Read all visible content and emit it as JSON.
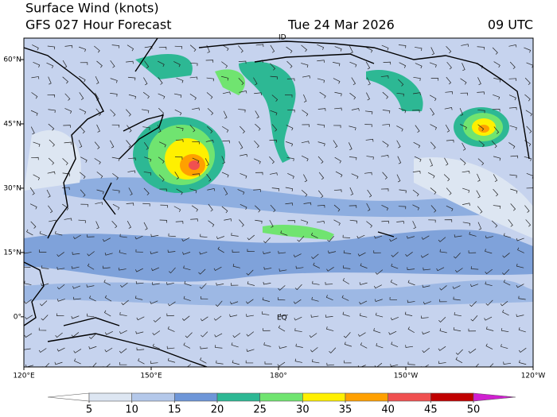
{
  "header": {
    "title": "Surface Wind (knots)",
    "subtitle": "GFS 027 Hour Forecast",
    "date": "Tue 24 Mar 2026",
    "time": "09 UTC"
  },
  "map": {
    "lon_range": [
      120,
      240
    ],
    "lat_range": [
      -11.7,
      65
    ],
    "lon_ticks": [
      {
        "value": 120,
        "label": "120°E"
      },
      {
        "value": 150,
        "label": "150°E"
      },
      {
        "value": 180,
        "label": "180°"
      },
      {
        "value": 210,
        "label": "150°W"
      },
      {
        "value": 240,
        "label": "120°W"
      }
    ],
    "lat_ticks": [
      {
        "value": 60,
        "label": "60°N"
      },
      {
        "value": 45,
        "label": "45°N"
      },
      {
        "value": 30,
        "label": "30°N"
      },
      {
        "value": 15,
        "label": "15°N"
      },
      {
        "value": 0,
        "label": "0°"
      }
    ],
    "labels": {
      "equator": "EQ",
      "dateline": "ID"
    }
  },
  "colorbar": {
    "ticks": [
      5,
      10,
      15,
      20,
      25,
      30,
      35,
      40,
      45,
      50
    ],
    "under_color": "#ffffff",
    "over_color": "#d020d0",
    "colors": [
      "#dde6f2",
      "#b4c8ea",
      "#6e96d8",
      "#2db894",
      "#70e470",
      "#fff000",
      "#ffa000",
      "#f05050",
      "#c00000"
    ]
  }
}
